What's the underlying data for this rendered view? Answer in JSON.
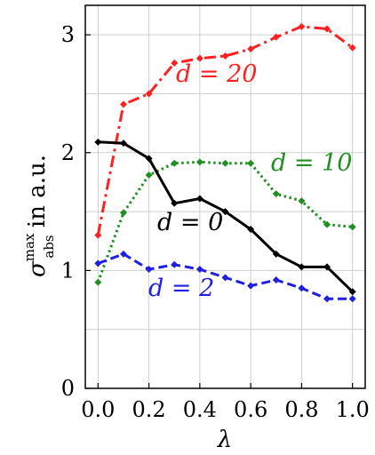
{
  "chart_data": {
    "type": "line",
    "x": [
      0.0,
      0.1,
      0.2,
      0.3,
      0.4,
      0.5,
      0.6,
      0.7,
      0.8,
      0.9,
      1.0
    ],
    "xlim": [
      -0.05,
      1.05
    ],
    "ylim": [
      0,
      3.25
    ],
    "grid": true,
    "xlabel": "λ",
    "ylabel": {
      "sigma": "σ",
      "sup": "max",
      "sub": "abs",
      "rest": " in a.u."
    },
    "xticks": [
      {
        "value": 0.0,
        "label": "0.0"
      },
      {
        "value": 0.2,
        "label": "0.2"
      },
      {
        "value": 0.4,
        "label": "0.4"
      },
      {
        "value": 0.6,
        "label": "0.6"
      },
      {
        "value": 0.8,
        "label": "0.8"
      },
      {
        "value": 1.0,
        "label": "1.0"
      }
    ],
    "yticks": [
      {
        "value": 0,
        "label": "0"
      },
      {
        "value": 1,
        "label": "1"
      },
      {
        "value": 2,
        "label": "2"
      },
      {
        "value": 3,
        "label": "3"
      }
    ],
    "ygrid": [
      0.5,
      1.0,
      1.5,
      2.0,
      2.5,
      3.0
    ],
    "series": [
      {
        "name": "d = 0",
        "color": "#000000",
        "dash": "solid",
        "values": [
          2.09,
          2.08,
          1.95,
          1.57,
          1.61,
          1.5,
          1.35,
          1.14,
          1.03,
          1.03,
          0.82
        ]
      },
      {
        "name": "d = 2",
        "color": "#1f1fe0",
        "dash": "dashed",
        "values": [
          1.06,
          1.14,
          1.01,
          1.05,
          1.01,
          0.94,
          0.87,
          0.92,
          0.85,
          0.76,
          0.76
        ]
      },
      {
        "name": "d = 10",
        "color": "#1f8f1f",
        "dash": "dotted",
        "values": [
          0.9,
          1.49,
          1.81,
          1.91,
          1.92,
          1.91,
          1.91,
          1.65,
          1.59,
          1.39,
          1.37
        ]
      },
      {
        "name": "d = 20",
        "color": "#ff2020",
        "dash": "dashdot",
        "values": [
          1.3,
          2.41,
          2.5,
          2.76,
          2.8,
          2.82,
          2.88,
          2.98,
          3.07,
          3.05,
          2.89
        ]
      }
    ]
  }
}
